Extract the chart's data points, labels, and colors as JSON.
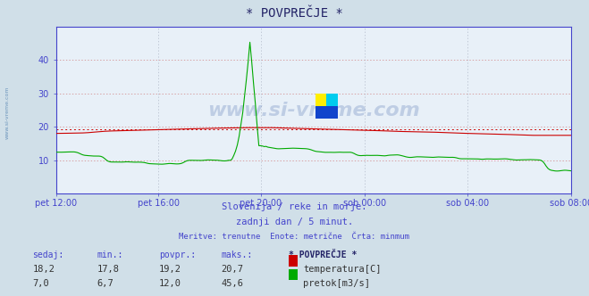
{
  "title": "* POVPREČJE *",
  "bg_color": "#d0dfe8",
  "plot_bg_color": "#e8f0f8",
  "temp_color": "#cc0000",
  "flow_color": "#00aa00",
  "avg_line_color": "#cc0000",
  "ylabel_color": "#4444cc",
  "xlabel_color": "#4444cc",
  "watermark": "www.si-vreme.com",
  "subtitle1": "Slovenija / reke in morje.",
  "subtitle2": "zadnji dan / 5 minut.",
  "subtitle3": "Meritve: trenutne  Enote: metrične  Črta: minmum",
  "xlabels": [
    "pet 12:00",
    "pet 16:00",
    "pet 20:00",
    "sob 00:00",
    "sob 04:00",
    "sob 08:00"
  ],
  "ylim": [
    0,
    50
  ],
  "yticks": [
    10,
    20,
    30,
    40
  ],
  "table_headers": [
    "sedaj:",
    "min.:",
    "povpr.:",
    "maks.:",
    "* POVPREČJE *"
  ],
  "temp_row": [
    "18,2",
    "17,8",
    "19,2",
    "20,7",
    "temperatura[C]"
  ],
  "flow_row": [
    "7,0",
    "6,7",
    "12,0",
    "45,6",
    "pretok[m3/s]"
  ],
  "avg_temp": 19.2,
  "n_points": 288,
  "logo_yellow": "#ffee00",
  "logo_cyan": "#00ccee",
  "logo_blue": "#1144cc"
}
